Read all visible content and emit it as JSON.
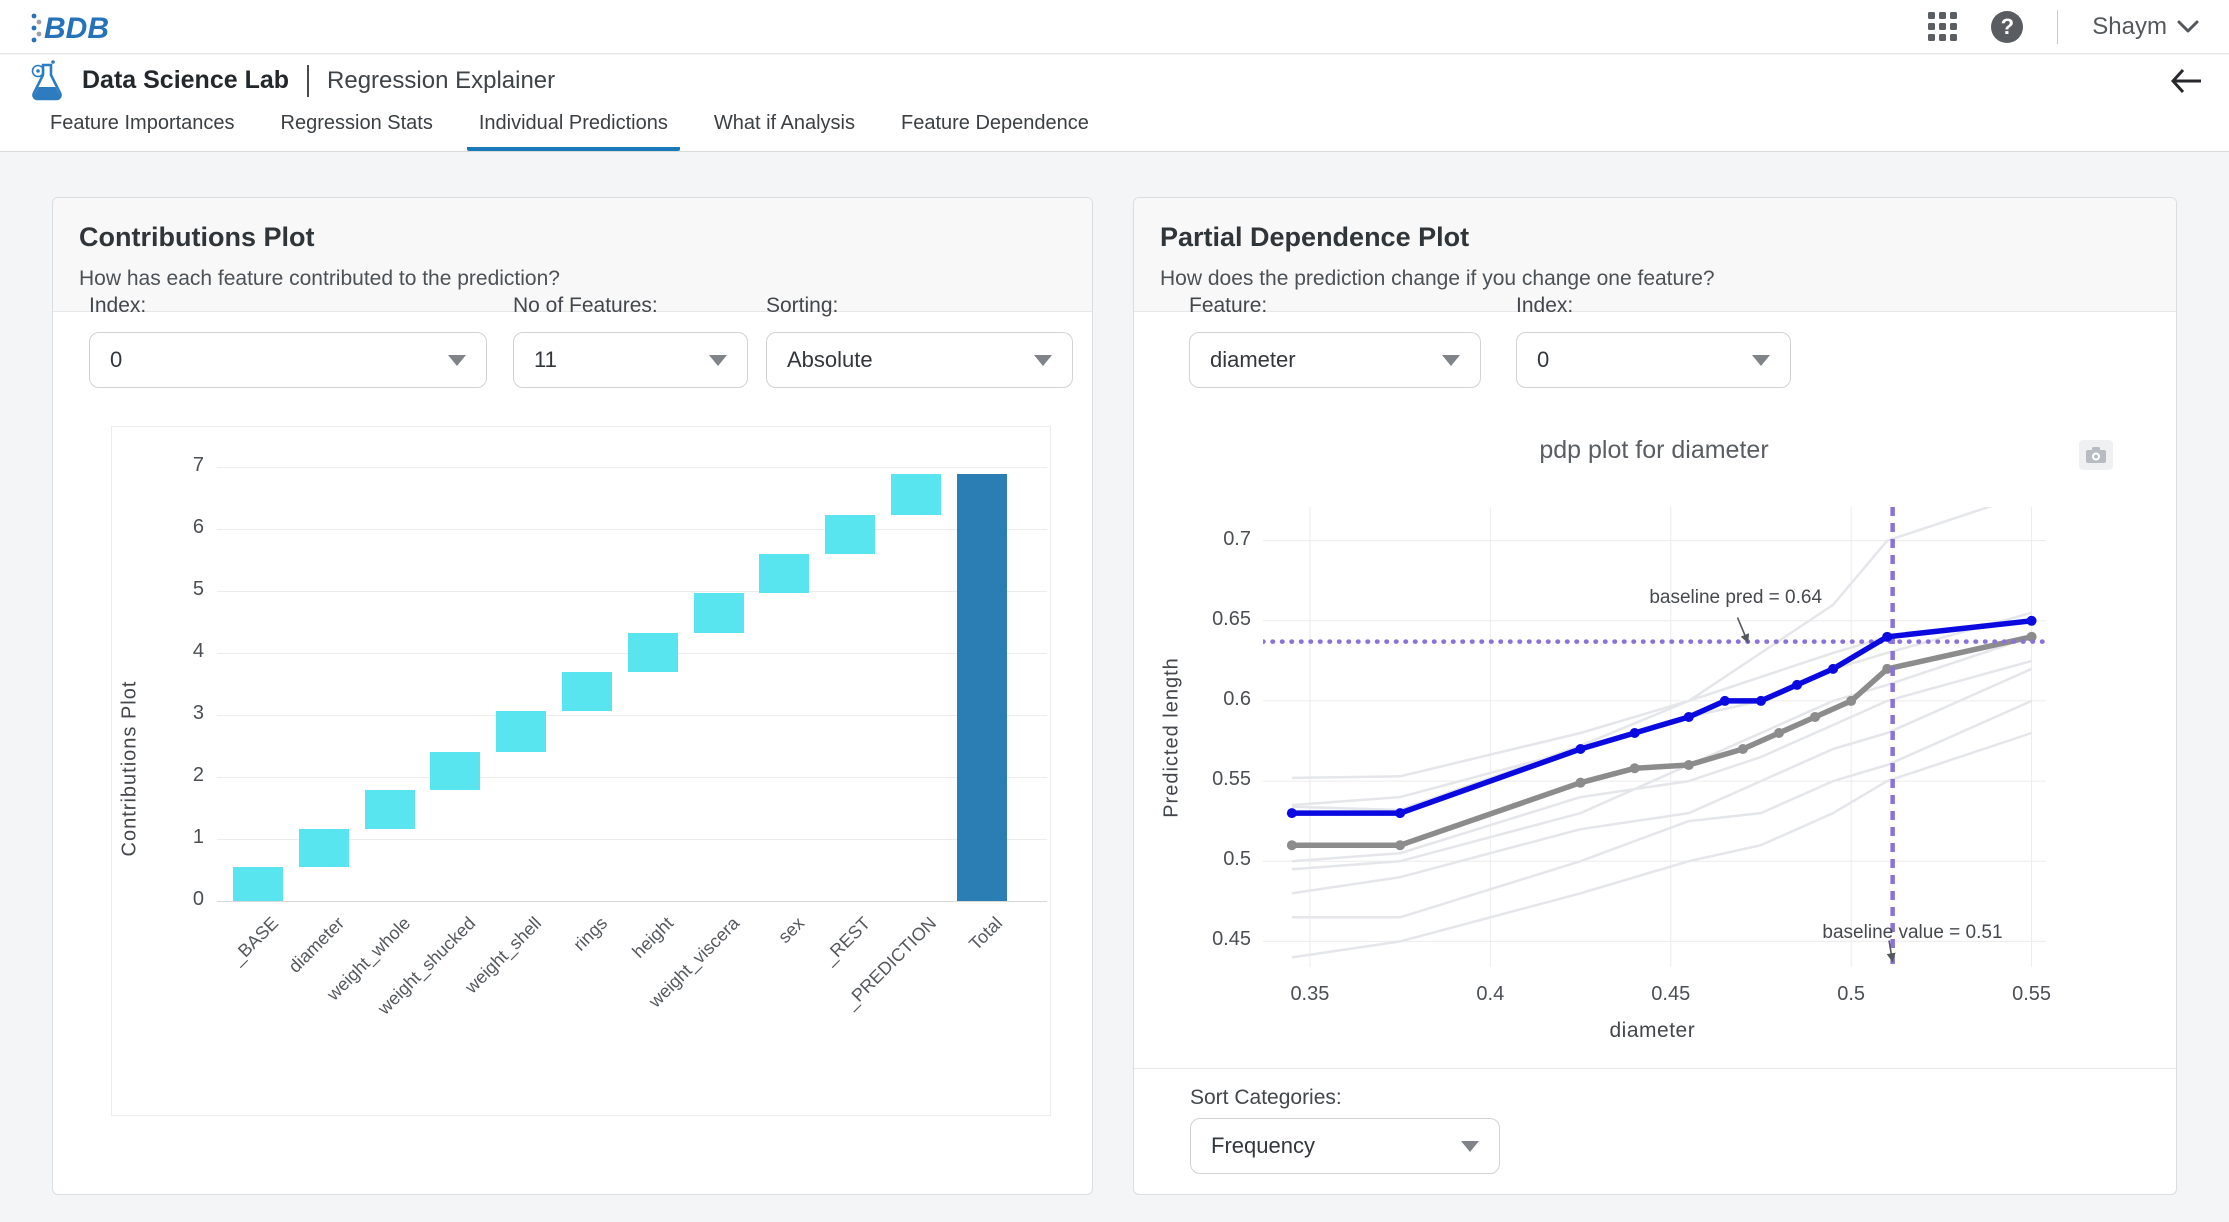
{
  "topbar": {
    "logo": "BDB",
    "user": "Shaym",
    "icons": {
      "apps": "apps-grid-icon",
      "help": "help-icon",
      "user_chevron": "chevron-down-icon"
    }
  },
  "subheader": {
    "app_title": "Data Science Lab",
    "page_title": "Regression Explainer",
    "icons": {
      "app": "flask-icon",
      "back": "back-arrow-icon"
    }
  },
  "tabs": [
    {
      "label": "Feature Importances",
      "active": false
    },
    {
      "label": "Regression Stats",
      "active": false
    },
    {
      "label": "Individual Predictions",
      "active": true
    },
    {
      "label": "What if Analysis",
      "active": false
    },
    {
      "label": "Feature Dependence",
      "active": false
    }
  ],
  "contributions": {
    "title": "Contributions Plot",
    "subtitle": "How has each feature contributed to the prediction?",
    "controls": {
      "index": {
        "label": "Index:",
        "value": "0"
      },
      "features": {
        "label": "No of Features:",
        "value": "11"
      },
      "sorting": {
        "label": "Sorting:",
        "value": "Absolute"
      }
    },
    "chart_data": {
      "type": "bar",
      "subtype": "waterfall",
      "ylabel": "Contributions Plot",
      "yticks": [
        0,
        1,
        2,
        3,
        4,
        5,
        6,
        7
      ],
      "ylim": [
        0,
        7.2
      ],
      "categories": [
        "_BASE",
        "diameter",
        "weight_whole",
        "weight_shucked",
        "weight_shell",
        "rings",
        "height",
        "weight_viscera",
        "sex",
        "_REST",
        "_PREDICTION",
        "Total"
      ],
      "bars": [
        {
          "label": "_BASE",
          "from": 0.0,
          "to": 0.55,
          "kind": "contribution"
        },
        {
          "label": "diameter",
          "from": 0.55,
          "to": 1.16,
          "kind": "contribution"
        },
        {
          "label": "weight_whole",
          "from": 1.16,
          "to": 1.79,
          "kind": "contribution"
        },
        {
          "label": "weight_shucked",
          "from": 1.79,
          "to": 2.41,
          "kind": "contribution"
        },
        {
          "label": "weight_shell",
          "from": 2.41,
          "to": 3.07,
          "kind": "contribution"
        },
        {
          "label": "rings",
          "from": 3.07,
          "to": 3.7,
          "kind": "contribution"
        },
        {
          "label": "height",
          "from": 3.7,
          "to": 4.32,
          "kind": "contribution"
        },
        {
          "label": "weight_viscera",
          "from": 4.32,
          "to": 4.97,
          "kind": "contribution"
        },
        {
          "label": "sex",
          "from": 4.97,
          "to": 5.6,
          "kind": "contribution"
        },
        {
          "label": "_REST",
          "from": 5.6,
          "to": 6.23,
          "kind": "contribution"
        },
        {
          "label": "_PREDICTION",
          "from": 6.23,
          "to": 6.88,
          "kind": "contribution"
        },
        {
          "label": "Total",
          "from": 0.0,
          "to": 6.88,
          "kind": "total"
        }
      ],
      "colors": {
        "contribution": "#59e5f0",
        "total": "#2a7eb3",
        "grid": "#ececec"
      }
    }
  },
  "pdp": {
    "title": "Partial Dependence Plot",
    "subtitle": "How does the prediction change if you change one feature?",
    "controls": {
      "feature": {
        "label": "Feature:",
        "value": "diameter"
      },
      "index": {
        "label": "Index:",
        "value": "0"
      }
    },
    "sort": {
      "label": "Sort Categories:",
      "value": "Frequency"
    },
    "chart_data": {
      "type": "line",
      "title": "pdp plot for diameter",
      "xlabel": "diameter",
      "ylabel": "Predicted length",
      "xticks": [
        0.35,
        0.4,
        0.45,
        0.5,
        0.55
      ],
      "yticks": [
        0.45,
        0.5,
        0.55,
        0.6,
        0.65,
        0.7
      ],
      "xlim": [
        0.337,
        0.554
      ],
      "ylim": [
        0.434,
        0.721
      ],
      "series": [
        {
          "name": "ice-1",
          "role": "ice",
          "x": [
            0.345,
            0.375,
            0.425,
            0.455,
            0.475,
            0.495,
            0.51,
            0.55
          ],
          "y": [
            0.552,
            0.553,
            0.58,
            0.6,
            0.63,
            0.66,
            0.7,
            0.73
          ]
        },
        {
          "name": "ice-2",
          "role": "ice",
          "x": [
            0.345,
            0.375,
            0.425,
            0.455,
            0.475,
            0.495,
            0.51,
            0.55
          ],
          "y": [
            0.535,
            0.54,
            0.57,
            0.59,
            0.6,
            0.62,
            0.63,
            0.655
          ]
        },
        {
          "name": "ice-3",
          "role": "ice",
          "x": [
            0.345,
            0.375,
            0.425,
            0.455,
            0.475,
            0.495,
            0.51,
            0.55
          ],
          "y": [
            0.534,
            0.532,
            0.572,
            0.6,
            0.615,
            0.63,
            0.64,
            0.65
          ]
        },
        {
          "name": "ice-4",
          "role": "ice",
          "x": [
            0.345,
            0.375,
            0.425,
            0.455,
            0.475,
            0.495,
            0.51,
            0.55
          ],
          "y": [
            0.5,
            0.505,
            0.54,
            0.55,
            0.565,
            0.585,
            0.6,
            0.625
          ]
        },
        {
          "name": "ice-5",
          "role": "ice",
          "x": [
            0.345,
            0.375,
            0.425,
            0.455,
            0.475,
            0.495,
            0.51,
            0.55
          ],
          "y": [
            0.495,
            0.5,
            0.53,
            0.56,
            0.58,
            0.6,
            0.61,
            0.64
          ]
        },
        {
          "name": "ice-6",
          "role": "ice",
          "x": [
            0.345,
            0.375,
            0.425,
            0.455,
            0.475,
            0.495,
            0.51,
            0.55
          ],
          "y": [
            0.48,
            0.49,
            0.52,
            0.53,
            0.55,
            0.57,
            0.58,
            0.62
          ]
        },
        {
          "name": "ice-7",
          "role": "ice",
          "x": [
            0.345,
            0.375,
            0.425,
            0.455,
            0.475,
            0.495,
            0.51,
            0.55
          ],
          "y": [
            0.465,
            0.465,
            0.5,
            0.525,
            0.53,
            0.55,
            0.56,
            0.6
          ]
        },
        {
          "name": "ice-8",
          "role": "ice",
          "x": [
            0.345,
            0.375,
            0.425,
            0.455,
            0.475,
            0.495,
            0.51,
            0.55
          ],
          "y": [
            0.44,
            0.45,
            0.48,
            0.5,
            0.51,
            0.53,
            0.55,
            0.58
          ]
        },
        {
          "name": "average",
          "role": "average",
          "x": [
            0.345,
            0.375,
            0.425,
            0.44,
            0.455,
            0.47,
            0.48,
            0.49,
            0.5,
            0.51,
            0.55
          ],
          "y": [
            0.51,
            0.51,
            0.549,
            0.558,
            0.56,
            0.57,
            0.58,
            0.59,
            0.6,
            0.62,
            0.64
          ]
        },
        {
          "name": "prediction",
          "role": "prediction",
          "x": [
            0.345,
            0.375,
            0.425,
            0.44,
            0.455,
            0.465,
            0.475,
            0.485,
            0.495,
            0.51,
            0.55
          ],
          "y": [
            0.53,
            0.53,
            0.57,
            0.58,
            0.59,
            0.6,
            0.6,
            0.61,
            0.62,
            0.64,
            0.65
          ]
        }
      ],
      "reference_lines": {
        "baseline_pred": {
          "value": 0.637,
          "orientation": "horizontal"
        },
        "baseline_value": {
          "value": 0.5115,
          "orientation": "vertical"
        }
      },
      "annotations": [
        {
          "text": "baseline pred = 0.64",
          "tx": 0.468,
          "ty": 0.664,
          "arrow": [
            [
              0.4685,
              0.652
            ],
            [
              0.4715,
              0.636
            ]
          ]
        },
        {
          "text": "baseline value = 0.51",
          "tx": 0.517,
          "ty": 0.455,
          "arrow": [
            [
              0.5105,
              0.4505
            ],
            [
              0.5115,
              0.437
            ]
          ]
        }
      ],
      "colors": {
        "prediction": "#0a0ae0",
        "average": "#8c8c8c",
        "ice": "#e4e6ea",
        "baseline": "#8b72d9",
        "grid": "#ececec"
      },
      "legend": "off",
      "grid": "on"
    },
    "icons": {
      "camera": "camera-icon"
    }
  }
}
